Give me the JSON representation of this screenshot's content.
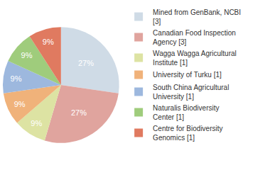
{
  "chart_data": {
    "type": "pie",
    "categories": [
      "Mined from GenBank, NCBI [3]",
      "Canadian Food Inspection Agency [3]",
      "Wagga Wagga Agricultural Institute [1]",
      "University of Turku [1]",
      "South China Agricultural University [1]",
      "Naturalis Biodiversity Center [1]",
      "Centre for Biodiversity Genomics [1]"
    ],
    "values": [
      27,
      27,
      9,
      9,
      9,
      9,
      9
    ],
    "value_labels": [
      "27%",
      "27%",
      "9%",
      "9%",
      "9%",
      "9%",
      "9%"
    ],
    "data_labels": true,
    "colors": [
      "#cfdbe6",
      "#e0a49e",
      "#dde3a3",
      "#f0b27a",
      "#9db8de",
      "#9fcc7c",
      "#e07a60"
    ],
    "legend": "right"
  }
}
